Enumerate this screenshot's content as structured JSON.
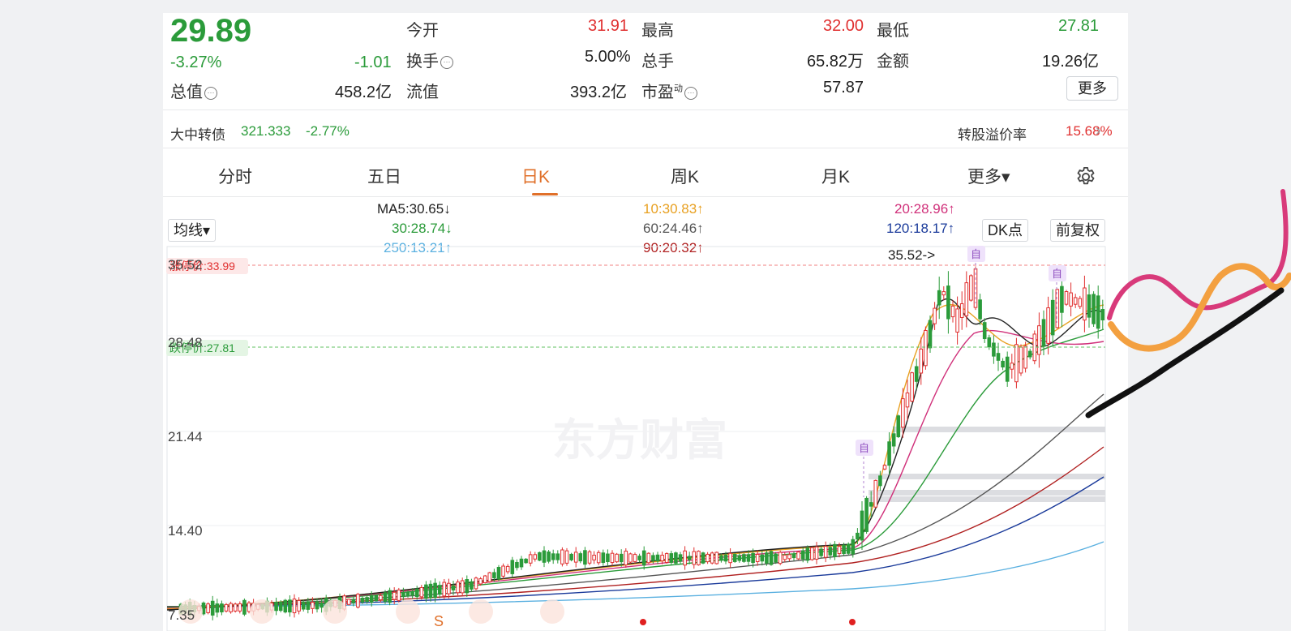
{
  "quote": {
    "price": "29.89",
    "change_pct": "-3.27%",
    "change_abs": "-1.01",
    "open_label": "今开",
    "open_value": "31.91",
    "high_label": "最高",
    "high_value": "32.00",
    "low_label": "最低",
    "low_value": "27.81",
    "turnover_label": "换手",
    "turnover_value": "5.00%",
    "volume_label": "总手",
    "volume_value": "65.82万",
    "amount_label": "金额",
    "amount_value": "19.26亿",
    "mktcap_label": "总值",
    "mktcap_value": "458.2亿",
    "float_label": "流值",
    "float_value": "393.2亿",
    "pe_label": "市盈",
    "pe_sup": "动",
    "pe_value": "57.87",
    "more_label": "更多",
    "info_icon": "ellipsis-circle-icon"
  },
  "bond": {
    "name": "大中转债",
    "price": "321.333",
    "change": "-2.77%",
    "premium_label": "转股溢价率",
    "premium_value": "15.68%",
    "arrow": "›"
  },
  "tabs": [
    {
      "label": "分时"
    },
    {
      "label": "五日"
    },
    {
      "label": "日K"
    },
    {
      "label": "周K"
    },
    {
      "label": "月K"
    },
    {
      "label": "更多▾"
    }
  ],
  "settings_icon": "gear-icon",
  "ma_panel": {
    "selector": "均线▾",
    "ma5": "MA5:30.65↓",
    "ma10": "10:30.83↑",
    "ma20": "20:28.96↑",
    "ma30": "30:28.74↓",
    "ma60": "60:24.46↑",
    "ma120": "120:18.17↑",
    "ma250": "250:13.21↑",
    "ma90": "90:20.32↑",
    "dk_label": "DK点",
    "fq_label": "前复权",
    "colors": {
      "ma5": "#222222",
      "ma10": "#e8a020",
      "ma20": "#d0307a",
      "ma30": "#2b9b3a",
      "ma60": "#555555",
      "ma90": "#b02020",
      "ma120": "#1a3a9a",
      "ma250": "#5ab0e0"
    }
  },
  "chart": {
    "y_labels": [
      "35.52",
      "28.48",
      "21.44",
      "14.40",
      "7.35"
    ],
    "limit_up_label": "涨停价:33.99",
    "limit_down_label": "跌停价:27.81",
    "max_annotation": "35.52->",
    "self_marker": "自",
    "watermark": "东方财富",
    "bottom_glyphs": [
      "S"
    ]
  }
}
